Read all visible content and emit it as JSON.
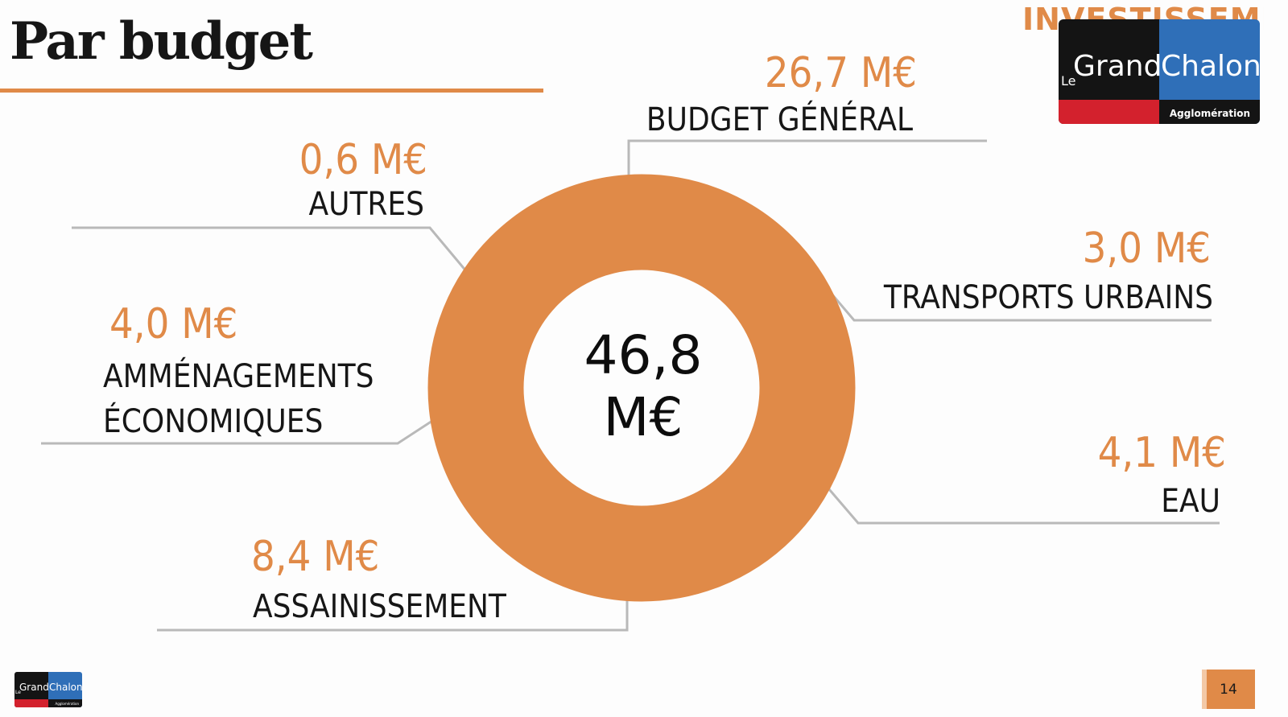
{
  "slide": {
    "title": "Par budget",
    "section_tag": "INVESTISSEMENT",
    "page_number": "14",
    "logo": {
      "prefix": "Le",
      "word1": "Grand",
      "word2": "Chalon",
      "subtitle": "Agglomération"
    }
  },
  "chart_data": {
    "type": "pie",
    "donut": true,
    "center_label": {
      "line1": "46,8",
      "line2": "M€"
    },
    "color": "#e08a48",
    "slices": [
      {
        "name": "BUDGET GÉNÉRAL",
        "value": 26.7,
        "value_label": "26,7 M€"
      },
      {
        "name": "TRANSPORTS URBAINS",
        "value": 3.0,
        "value_label": "3,0 M€"
      },
      {
        "name": "EAU",
        "value": 4.1,
        "value_label": "4,1 M€"
      },
      {
        "name": "ASSAINISSEMENT",
        "value": 8.4,
        "value_label": "8,4 M€"
      },
      {
        "name_lines": [
          "AMMÉNAGEMENTS",
          "ÉCONOMIQUES"
        ],
        "value": 4.0,
        "value_label": "4,0 M€"
      },
      {
        "name": "AUTRES",
        "value": 0.6,
        "value_label": "0,6 M€"
      }
    ]
  }
}
